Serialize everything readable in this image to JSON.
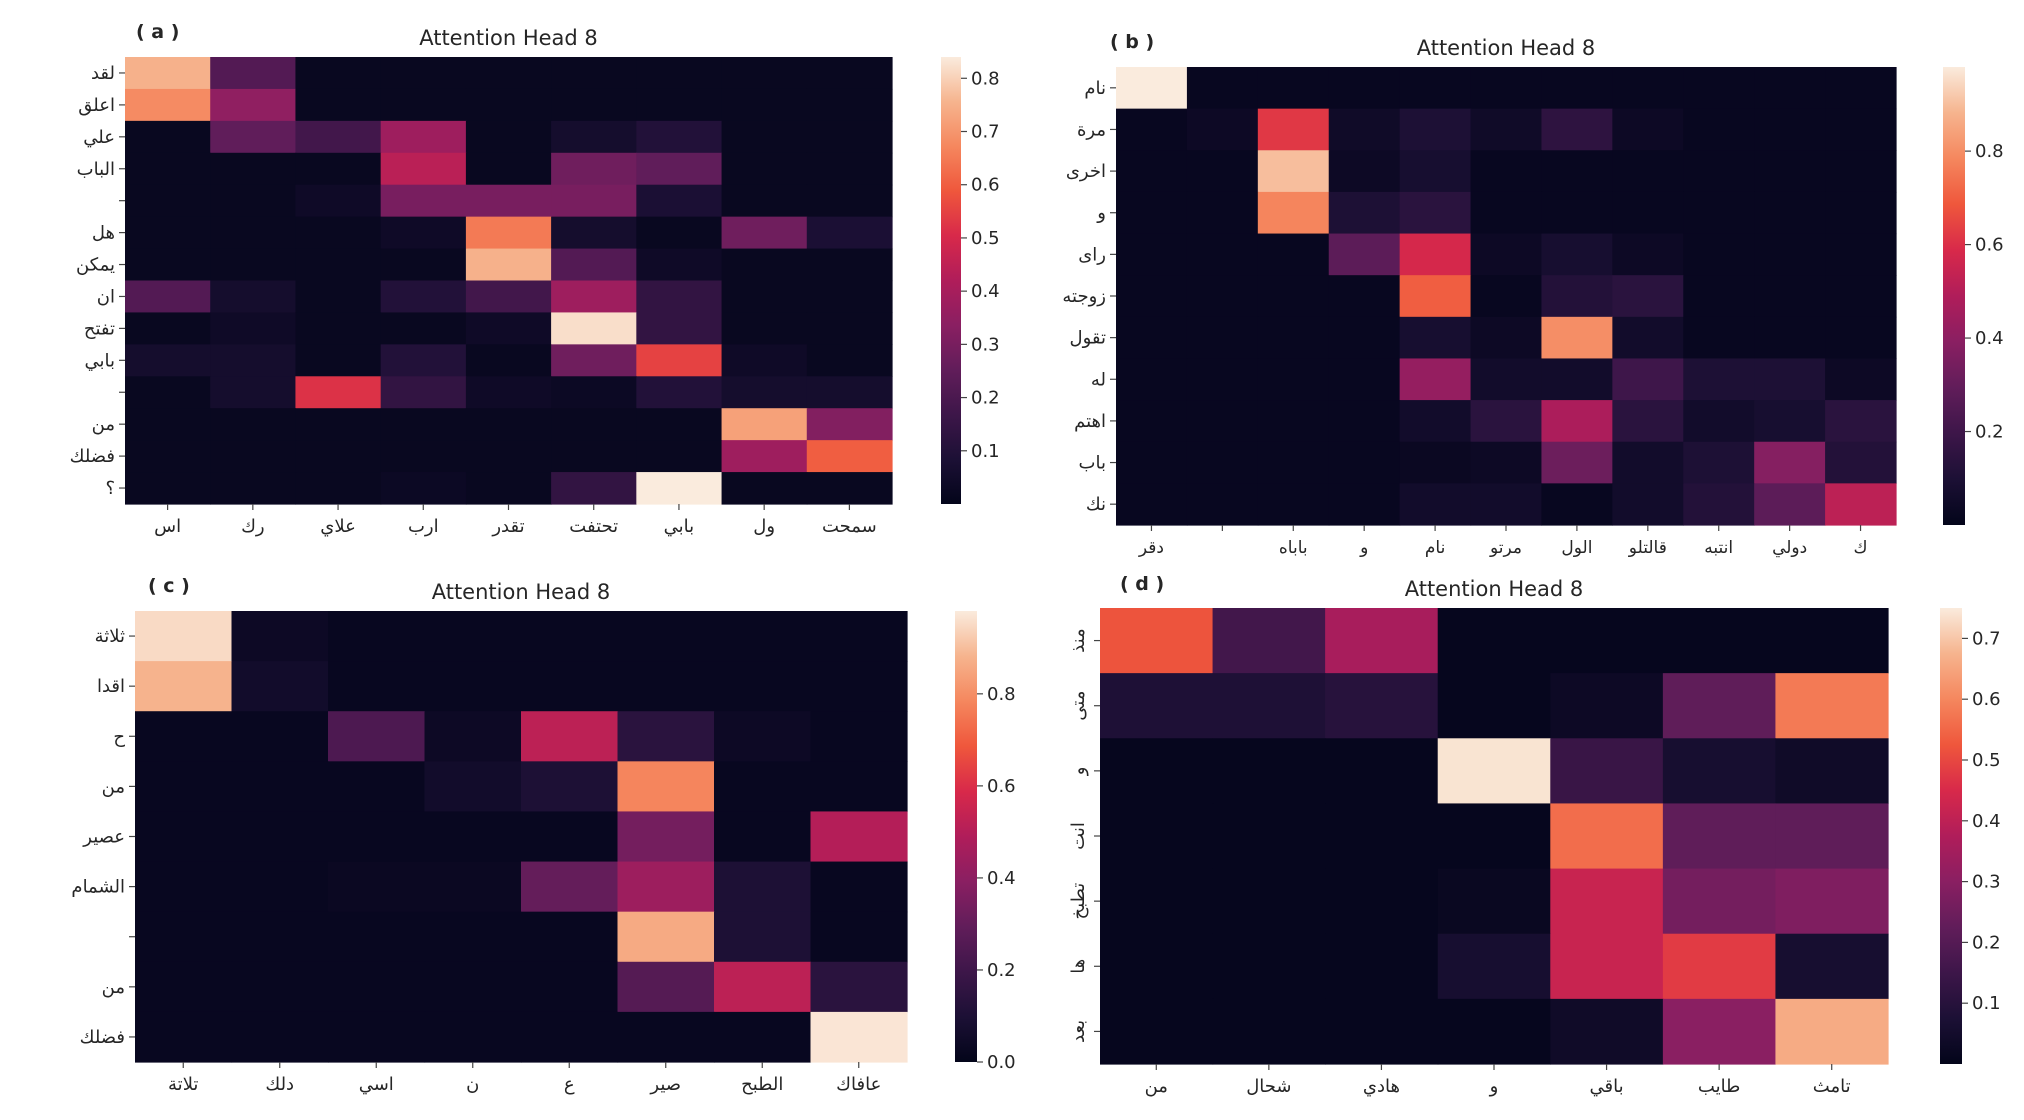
{
  "chart_data": [
    {
      "type": "heatmap",
      "panel_label": "( a )",
      "title": "Attention Head 8",
      "rows": [
        "لقد",
        "اعلق",
        "علي",
        "الباب",
        "",
        "هل",
        "يمكن",
        "ان",
        "تفتح",
        "بابي",
        "",
        "من",
        "فضلك",
        "؟"
      ],
      "cols": [
        "اس",
        "رك",
        "علاي",
        "ارب",
        "تقدر",
        "تحتفت",
        "بابي",
        "ول",
        "سمحت"
      ],
      "values": [
        [
          0.75,
          0.22,
          0.02,
          0.02,
          0.02,
          0.02,
          0.02,
          0.02,
          0.02
        ],
        [
          0.68,
          0.35,
          0.02,
          0.02,
          0.02,
          0.02,
          0.02,
          0.02,
          0.02
        ],
        [
          0.02,
          0.25,
          0.18,
          0.38,
          0.02,
          0.06,
          0.1,
          0.02,
          0.02
        ],
        [
          0.02,
          0.02,
          0.02,
          0.44,
          0.02,
          0.28,
          0.25,
          0.02,
          0.02
        ],
        [
          0.02,
          0.02,
          0.04,
          0.3,
          0.3,
          0.3,
          0.08,
          0.02,
          0.02
        ],
        [
          0.02,
          0.02,
          0.02,
          0.04,
          0.65,
          0.06,
          0.02,
          0.28,
          0.08
        ],
        [
          0.02,
          0.02,
          0.02,
          0.02,
          0.75,
          0.22,
          0.04,
          0.02,
          0.02
        ],
        [
          0.22,
          0.06,
          0.02,
          0.1,
          0.18,
          0.38,
          0.14,
          0.02,
          0.02
        ],
        [
          0.02,
          0.04,
          0.02,
          0.02,
          0.04,
          0.82,
          0.14,
          0.02,
          0.02
        ],
        [
          0.06,
          0.06,
          0.02,
          0.1,
          0.02,
          0.28,
          0.55,
          0.04,
          0.02
        ],
        [
          0.02,
          0.06,
          0.52,
          0.14,
          0.04,
          0.03,
          0.1,
          0.06,
          0.06
        ],
        [
          0.02,
          0.02,
          0.02,
          0.02,
          0.02,
          0.02,
          0.02,
          0.72,
          0.32
        ],
        [
          0.02,
          0.02,
          0.02,
          0.02,
          0.02,
          0.02,
          0.02,
          0.38,
          0.6
        ],
        [
          0.02,
          0.02,
          0.02,
          0.03,
          0.02,
          0.14,
          0.84,
          0.02,
          0.02
        ]
      ],
      "colorbar": {
        "range": [
          0,
          0.84
        ],
        "ticks": [
          "0.1",
          "0.2",
          "0.3",
          "0.4",
          "0.5",
          "0.6",
          "0.7",
          "0.8"
        ],
        "tick_values": [
          0.1,
          0.2,
          0.3,
          0.4,
          0.5,
          0.6,
          0.7,
          0.8
        ]
      }
    },
    {
      "type": "heatmap",
      "panel_label": "( b )",
      "title": "Attention Head 8",
      "rows": [
        "نام",
        "مرة",
        "اخرى",
        "و",
        "راى",
        "زوجته",
        "تقول",
        "له",
        "اهتم",
        "باب",
        "نك"
      ],
      "cols": [
        "دقر",
        "",
        "باباه",
        "و",
        "نام",
        "مرتو",
        "الول",
        "قالتلو",
        "انتبه",
        "دولي",
        "ك"
      ],
      "values": [
        [
          0.98,
          0.02,
          0.02,
          0.02,
          0.02,
          0.02,
          0.02,
          0.02,
          0.02,
          0.02,
          0.02
        ],
        [
          0.02,
          0.04,
          0.62,
          0.05,
          0.1,
          0.05,
          0.15,
          0.04,
          0.02,
          0.02,
          0.02
        ],
        [
          0.02,
          0.02,
          0.9,
          0.04,
          0.08,
          0.02,
          0.02,
          0.02,
          0.02,
          0.02,
          0.02
        ],
        [
          0.02,
          0.02,
          0.78,
          0.1,
          0.14,
          0.02,
          0.02,
          0.02,
          0.02,
          0.02,
          0.02
        ],
        [
          0.02,
          0.02,
          0.02,
          0.28,
          0.58,
          0.04,
          0.08,
          0.04,
          0.02,
          0.02,
          0.02
        ],
        [
          0.02,
          0.02,
          0.02,
          0.02,
          0.7,
          0.02,
          0.12,
          0.14,
          0.02,
          0.02,
          0.02
        ],
        [
          0.02,
          0.02,
          0.02,
          0.02,
          0.08,
          0.04,
          0.8,
          0.06,
          0.02,
          0.02,
          0.02
        ],
        [
          0.02,
          0.02,
          0.02,
          0.02,
          0.42,
          0.06,
          0.06,
          0.2,
          0.1,
          0.1,
          0.04
        ],
        [
          0.02,
          0.02,
          0.02,
          0.02,
          0.06,
          0.14,
          0.48,
          0.14,
          0.06,
          0.08,
          0.14
        ],
        [
          0.02,
          0.02,
          0.02,
          0.02,
          0.03,
          0.04,
          0.32,
          0.06,
          0.1,
          0.38,
          0.12
        ],
        [
          0.02,
          0.02,
          0.02,
          0.02,
          0.06,
          0.06,
          0.02,
          0.06,
          0.12,
          0.28,
          0.52
        ]
      ],
      "colorbar": {
        "range": [
          0,
          0.98
        ],
        "ticks": [
          "0.2",
          "0.4",
          "0.6",
          "0.8"
        ],
        "tick_values": [
          0.2,
          0.4,
          0.6,
          0.8
        ]
      }
    },
    {
      "type": "heatmap",
      "panel_label": "( c )",
      "title": "Attention Head 8",
      "rows": [
        "ثلاثة",
        "اقدا",
        "ح",
        "من",
        "عصير",
        "الشمام",
        "",
        "من",
        "فضلك"
      ],
      "cols": [
        "تلاتة",
        "دلك",
        "اسي",
        "ن",
        "ع",
        "صير",
        "الطبح",
        "عافاك"
      ],
      "values": [
        [
          0.95,
          0.04,
          0.02,
          0.02,
          0.02,
          0.02,
          0.02,
          0.02
        ],
        [
          0.88,
          0.06,
          0.02,
          0.02,
          0.02,
          0.02,
          0.02,
          0.02
        ],
        [
          0.02,
          0.02,
          0.24,
          0.04,
          0.52,
          0.14,
          0.04,
          0.02
        ],
        [
          0.02,
          0.02,
          0.02,
          0.06,
          0.1,
          0.78,
          0.02,
          0.02
        ],
        [
          0.02,
          0.02,
          0.02,
          0.02,
          0.02,
          0.34,
          0.02,
          0.5
        ],
        [
          0.02,
          0.02,
          0.03,
          0.03,
          0.3,
          0.44,
          0.1,
          0.02
        ],
        [
          0.02,
          0.02,
          0.02,
          0.02,
          0.02,
          0.86,
          0.1,
          0.02
        ],
        [
          0.02,
          0.02,
          0.02,
          0.02,
          0.02,
          0.26,
          0.52,
          0.14
        ],
        [
          0.02,
          0.02,
          0.02,
          0.02,
          0.02,
          0.02,
          0.02,
          0.97
        ]
      ],
      "colorbar": {
        "range": [
          0,
          0.98
        ],
        "ticks": [
          "0.0",
          "0.2",
          "0.4",
          "0.6",
          "0.8"
        ],
        "tick_values": [
          0.0,
          0.2,
          0.4,
          0.6,
          0.8
        ]
      }
    },
    {
      "type": "heatmap",
      "panel_label": "( d )",
      "title": "Attention Head 8",
      "rows": [
        "منذ",
        "متى",
        "و",
        "انت",
        "تطبخ",
        "ها",
        "بعد"
      ],
      "cols": [
        "من",
        "شحال",
        "هادي",
        "و",
        "باقي",
        "طايب",
        "تامث"
      ],
      "values": [
        [
          0.52,
          0.16,
          0.36,
          0.01,
          0.01,
          0.01,
          0.01
        ],
        [
          0.08,
          0.08,
          0.1,
          0.01,
          0.03,
          0.22,
          0.58
        ],
        [
          0.01,
          0.01,
          0.01,
          0.74,
          0.14,
          0.06,
          0.04
        ],
        [
          0.01,
          0.01,
          0.01,
          0.01,
          0.56,
          0.22,
          0.22
        ],
        [
          0.01,
          0.01,
          0.01,
          0.02,
          0.42,
          0.26,
          0.28
        ],
        [
          0.01,
          0.01,
          0.01,
          0.06,
          0.42,
          0.48,
          0.06
        ],
        [
          0.01,
          0.01,
          0.01,
          0.01,
          0.04,
          0.3,
          0.66
        ]
      ],
      "colorbar": {
        "range": [
          0,
          0.75
        ],
        "ticks": [
          "0.1",
          "0.2",
          "0.3",
          "0.4",
          "0.5",
          "0.6",
          "0.7"
        ],
        "tick_values": [
          0.1,
          0.2,
          0.3,
          0.4,
          0.5,
          0.6,
          0.7
        ]
      }
    }
  ]
}
